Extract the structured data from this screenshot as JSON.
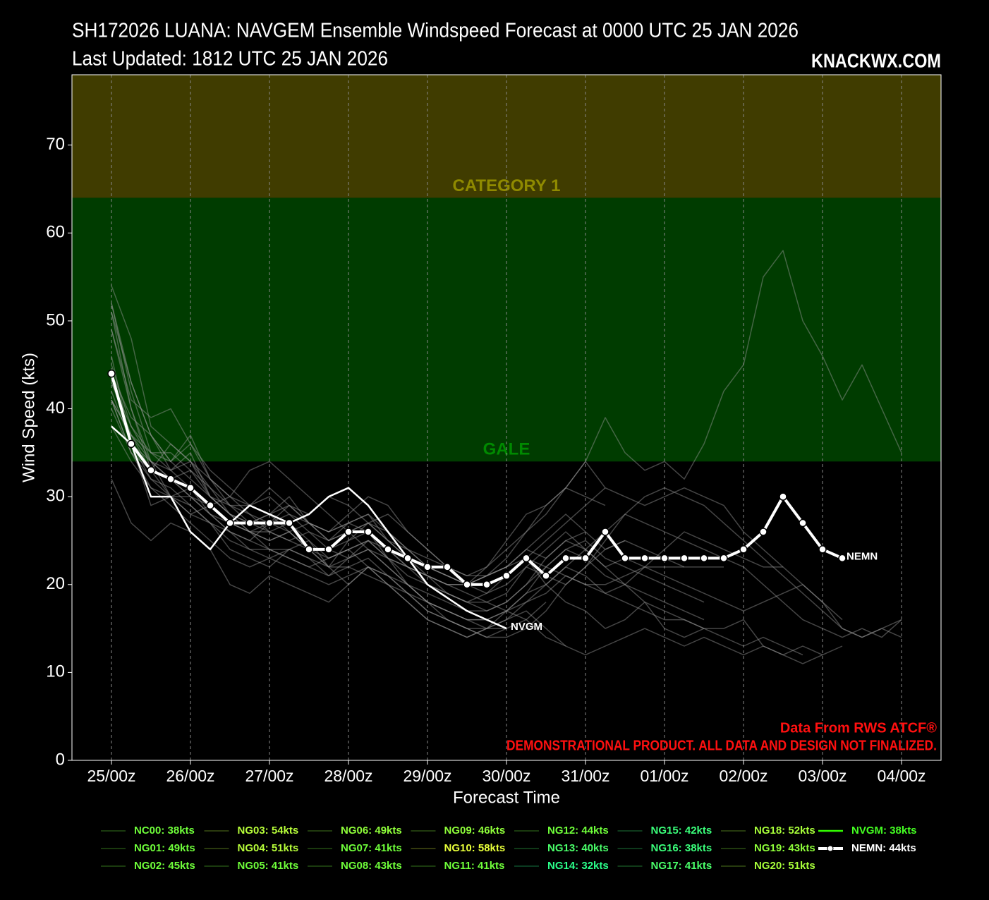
{
  "chart_data": {
    "type": "line",
    "title": "SH172026 LUANA: NAVGEM Ensemble Windspeed Forecast at 0000 UTC 25 JAN 2026",
    "subtitle": "Last Updated: 1812 UTC 25 JAN 2026",
    "brand": "KNACKWX.COM",
    "y_label": "Wind Speed (kts)",
    "x_label": "Forecast Time",
    "source": "Data From RWS ATCF®",
    "disclaimer": "DEMONSTRATIONAL PRODUCT. ALL DATA AND DESIGN NOT FINALIZED.",
    "ylim": [
      0,
      78
    ],
    "yticks": [
      0,
      10,
      20,
      30,
      40,
      50,
      60,
      70
    ],
    "x_grid": true,
    "bands": [
      {
        "label": "CATEGORY 1",
        "from": 64,
        "color": "#403c00",
        "label_color": "#8f8a00"
      },
      {
        "label": "GALE",
        "from": 34,
        "to": 64,
        "color": "#003c00",
        "label_color": "#008a00"
      }
    ],
    "categories": [
      "25/00z",
      null,
      null,
      null,
      "26/00z",
      null,
      null,
      null,
      "27/00z",
      null,
      null,
      null,
      "28/00z",
      null,
      null,
      null,
      "29/00z",
      null,
      null,
      null,
      "30/00z",
      null,
      null,
      null,
      "31/00z",
      null,
      null,
      null,
      "01/00z",
      null,
      null,
      null,
      "02/00z",
      null,
      null,
      null,
      "03/00z",
      null,
      null,
      null,
      "04/00z"
    ],
    "series": [
      {
        "name": "NC00: 38kts",
        "color": "#9a9a9a",
        "legend_color": "#6fff3a",
        "values": [
          38,
          36,
          32,
          30,
          28,
          27,
          26,
          25,
          24,
          24,
          23,
          22,
          22,
          21,
          20,
          19,
          18,
          17,
          16,
          15,
          15,
          null,
          null,
          null,
          null,
          null,
          null,
          null,
          null,
          null,
          null,
          null,
          null,
          null,
          null,
          null,
          null,
          null,
          null,
          null,
          null
        ]
      },
      {
        "name": "NG01: 49kts",
        "color": "#9a9a9a",
        "legend_color": "#6fff3a",
        "values": [
          49,
          40,
          33,
          30,
          29,
          27,
          25,
          24,
          24,
          23,
          22,
          21,
          22,
          23,
          21,
          19,
          17,
          16,
          15,
          14,
          14,
          15,
          17,
          20,
          22,
          24,
          25,
          null,
          null,
          null,
          null,
          null,
          null,
          null,
          null,
          null,
          null,
          null,
          null,
          null,
          null
        ]
      },
      {
        "name": "NG02: 45kts",
        "color": "#9a9a9a",
        "legend_color": "#6fff3a",
        "values": [
          45,
          38,
          35,
          33,
          34,
          30,
          28,
          26,
          24,
          23,
          22,
          23,
          24,
          25,
          23,
          20,
          18,
          17,
          16,
          16,
          17,
          18,
          20,
          22,
          21,
          19,
          20,
          22,
          24,
          26,
          25,
          24,
          23,
          22,
          22,
          null,
          null,
          null,
          null,
          null,
          null
        ]
      },
      {
        "name": "NG03: 54kts",
        "color": "#9a9a9a",
        "legend_color": "#b8ff3a",
        "values": [
          54,
          48,
          38,
          36,
          34,
          32,
          30,
          28,
          26,
          25,
          24,
          22,
          23,
          24,
          22,
          20,
          18,
          16,
          15,
          14,
          15,
          16,
          18,
          null,
          null,
          null,
          null,
          null,
          null,
          null,
          null,
          null,
          null,
          null,
          null,
          null,
          null,
          null,
          null,
          null,
          null
        ]
      },
      {
        "name": "NG04: 51kts",
        "color": "#9a9a9a",
        "legend_color": "#b8ff3a",
        "values": [
          51,
          43,
          37,
          34,
          37,
          32,
          29,
          27,
          28,
          30,
          27,
          25,
          26,
          27,
          25,
          23,
          21,
          19,
          18,
          17,
          18,
          20,
          23,
          25,
          24,
          22,
          20,
          18,
          17,
          16,
          15,
          14,
          13,
          14,
          13,
          12,
          null,
          null,
          null,
          null,
          null
        ]
      },
      {
        "name": "NG05: 41kts",
        "color": "#9a9a9a",
        "legend_color": "#6fff3a",
        "values": [
          41,
          35,
          31,
          30,
          31,
          28,
          26,
          24,
          23,
          24,
          25,
          22,
          20,
          22,
          21,
          19,
          17,
          16,
          15,
          15,
          16,
          18,
          19,
          21,
          20,
          19,
          18,
          17,
          16,
          16,
          15,
          15,
          16,
          13,
          12,
          13,
          12,
          null,
          null,
          null,
          null
        ]
      },
      {
        "name": "NG06: 49kts",
        "color": "#9a9a9a",
        "legend_color": "#8fff3a",
        "values": [
          49,
          41,
          39,
          40,
          36,
          32,
          30,
          29,
          28,
          26,
          27,
          25,
          27,
          26,
          24,
          22,
          21,
          20,
          19,
          18,
          17,
          19,
          20,
          22,
          24,
          26,
          28,
          27,
          26,
          25,
          24,
          23,
          22,
          20,
          18,
          16,
          15,
          14,
          15,
          14,
          16
        ]
      },
      {
        "name": "NG07: 41kts",
        "color": "#9a9a9a",
        "legend_color": "#6fff3a",
        "values": [
          41,
          37,
          35,
          35,
          33,
          31,
          29,
          28,
          27,
          29,
          28,
          30,
          29,
          27,
          25,
          24,
          23,
          22,
          21,
          21,
          22,
          24,
          23,
          25,
          26,
          null,
          null,
          null,
          null,
          null,
          null,
          null,
          null,
          null,
          null,
          null,
          null,
          null,
          null,
          null,
          null
        ]
      },
      {
        "name": "NG08: 43kts",
        "color": "#9a9a9a",
        "legend_color": "#6fff3a",
        "values": [
          43,
          38,
          34,
          30,
          30,
          28,
          26,
          25,
          27,
          26,
          24,
          22,
          25,
          27,
          28,
          26,
          24,
          22,
          20,
          19,
          21,
          23,
          20,
          18,
          17,
          15,
          16,
          18,
          15,
          14,
          15,
          null,
          null,
          null,
          null,
          null,
          null,
          null,
          null,
          null,
          null
        ]
      },
      {
        "name": "NG09: 46kts",
        "color": "#9a9a9a",
        "legend_color": "#8fff3a",
        "values": [
          46,
          36,
          29,
          30,
          28,
          29,
          30,
          33,
          34,
          32,
          30,
          28,
          26,
          24,
          22,
          20,
          18,
          17,
          16,
          16,
          17,
          19,
          22,
          24,
          25,
          23,
          22,
          21,
          20,
          19,
          18,
          null,
          null,
          null,
          null,
          null,
          null,
          null,
          null,
          null,
          null
        ]
      },
      {
        "name": "NG10: 58kts",
        "color": "#9a9a9a",
        "legend_color": "#e8ff3a",
        "values": [
          52,
          42,
          35,
          34,
          36,
          33,
          31,
          29,
          30,
          28,
          27,
          26,
          28,
          30,
          29,
          26,
          24,
          22,
          21,
          22,
          24,
          26,
          28,
          31,
          34,
          39,
          35,
          33,
          34,
          32,
          36,
          42,
          45,
          55,
          58,
          50,
          46,
          41,
          45,
          40,
          35
        ]
      },
      {
        "name": "NG11: 41kts",
        "color": "#9a9a9a",
        "legend_color": "#6fff3a",
        "values": [
          41,
          35,
          33,
          36,
          34,
          31,
          28,
          27,
          26,
          27,
          25,
          23,
          24,
          22,
          20,
          18,
          16,
          15,
          14,
          15,
          16,
          17,
          15,
          13,
          null,
          null,
          null,
          null,
          null,
          null,
          null,
          null,
          null,
          null,
          null,
          null,
          null,
          null,
          null,
          null,
          null
        ]
      },
      {
        "name": "NG12: 44kts",
        "color": "#9a9a9a",
        "legend_color": "#6fff3a",
        "values": [
          44,
          39,
          37,
          34,
          32,
          30,
          29,
          29,
          31,
          29,
          27,
          26,
          27,
          28,
          26,
          24,
          22,
          21,
          20,
          21,
          23,
          26,
          29,
          31,
          30,
          29,
          null,
          null,
          null,
          null,
          null,
          null,
          null,
          null,
          null,
          null,
          null,
          null,
          null,
          null,
          null
        ]
      },
      {
        "name": "NG13: 40kts",
        "color": "#9a9a9a",
        "legend_color": "#4aff6a",
        "values": [
          40,
          35,
          32,
          31,
          29,
          27,
          24,
          23,
          22,
          24,
          23,
          21,
          23,
          25,
          24,
          22,
          20,
          19,
          18,
          18,
          19,
          22,
          24,
          26,
          24,
          22,
          23,
          22,
          21,
          20,
          19,
          18,
          17,
          18,
          19,
          20,
          18,
          16,
          null,
          null,
          null
        ]
      },
      {
        "name": "NG14: 32kts",
        "color": "#9a9a9a",
        "legend_color": "#2aff8a",
        "values": [
          32,
          27,
          25,
          27,
          26,
          24,
          20,
          19,
          21,
          20,
          19,
          18,
          20,
          22,
          20,
          18,
          16,
          15,
          14,
          15,
          17,
          16,
          14,
          13,
          12,
          13,
          14,
          15,
          14,
          13,
          14,
          13,
          12,
          13,
          12,
          11,
          12,
          13,
          null,
          null,
          null
        ]
      },
      {
        "name": "NG15: 42kts",
        "color": "#9a9a9a",
        "legend_color": "#3aff7a",
        "values": [
          42,
          36,
          34,
          33,
          31,
          29,
          27,
          26,
          26,
          25,
          26,
          24,
          25,
          26,
          23,
          21,
          20,
          19,
          18,
          19,
          20,
          22,
          21,
          20,
          22,
          25,
          28,
          30,
          31,
          30,
          29,
          27,
          25,
          23,
          21,
          19,
          17,
          15,
          14,
          15,
          16
        ]
      },
      {
        "name": "NG16: 38kts",
        "color": "#9a9a9a",
        "legend_color": "#3aff7a",
        "values": [
          38,
          34,
          31,
          29,
          27,
          25,
          23,
          22,
          23,
          22,
          21,
          20,
          21,
          22,
          21,
          20,
          19,
          18,
          17,
          17,
          18,
          20,
          22,
          24,
          23,
          21,
          20,
          19,
          18,
          17,
          16,
          null,
          null,
          null,
          null,
          null,
          null,
          null,
          null,
          null,
          null
        ]
      },
      {
        "name": "NG17: 41kts",
        "color": "#9a9a9a",
        "legend_color": "#4aff6a",
        "values": [
          41,
          37,
          34,
          32,
          30,
          28,
          27,
          26,
          25,
          26,
          24,
          23,
          24,
          25,
          23,
          22,
          21,
          20,
          20,
          21,
          22,
          24,
          26,
          28,
          26,
          24,
          25,
          24,
          23,
          22,
          22,
          22,
          null,
          null,
          null,
          null,
          null,
          null,
          null,
          null,
          null
        ]
      },
      {
        "name": "NG18: 52kts",
        "color": "#9a9a9a",
        "legend_color": "#a8ff3a",
        "values": [
          52,
          43,
          37,
          33,
          35,
          30,
          28,
          26,
          25,
          26,
          24,
          24,
          23,
          24,
          23,
          22,
          21,
          20,
          20,
          22,
          25,
          28,
          29,
          31,
          34,
          31,
          30,
          29,
          30,
          31,
          30,
          29,
          26,
          24,
          22,
          20,
          18,
          15,
          14,
          15,
          14
        ]
      },
      {
        "name": "NG19: 43kts",
        "color": "#9a9a9a",
        "legend_color": "#8fff3a",
        "values": [
          43,
          37,
          33,
          32,
          30,
          29,
          27,
          26,
          27,
          28,
          26,
          25,
          26,
          27,
          26,
          24,
          22,
          21,
          20,
          20,
          21,
          23,
          25,
          27,
          29,
          31,
          null,
          null,
          null,
          null,
          null,
          null,
          null,
          null,
          null,
          null,
          null,
          null,
          null,
          null,
          null
        ]
      },
      {
        "name": "NG20: 51kts",
        "color": "#9a9a9a",
        "legend_color": "#a8ff3a",
        "values": [
          51,
          40,
          34,
          32,
          33,
          30,
          28,
          27,
          28,
          29,
          27,
          26,
          27,
          28,
          25,
          23,
          22,
          21,
          20,
          21,
          22,
          23,
          22,
          21,
          20,
          20,
          21,
          22,
          22,
          22,
          null,
          null,
          null,
          null,
          null,
          null,
          null,
          null,
          null,
          null,
          null
        ]
      },
      {
        "name": "NVGM: 38kts",
        "end_label": "NVGM",
        "color": "#ffffff",
        "legend_color": "#44ff22",
        "swatch_color": "#33ff00",
        "width": 2.5,
        "values": [
          38,
          36,
          30,
          30,
          26,
          24,
          27,
          29,
          28,
          27,
          28,
          30,
          31,
          29,
          26,
          23,
          20,
          18.5,
          17,
          16,
          15,
          null,
          null,
          null,
          null,
          null,
          null,
          null,
          null,
          null,
          null,
          null,
          null,
          null,
          null,
          null,
          null,
          null,
          null,
          null,
          null
        ]
      },
      {
        "name": "NEMN: 44kts",
        "end_label": "NEMN",
        "color": "#ffffff",
        "legend_color": "#ffffff",
        "width": 4,
        "markers": true,
        "values": [
          44,
          36,
          33,
          32,
          31,
          29,
          27,
          27,
          27,
          27,
          24,
          24,
          26,
          26,
          24,
          23,
          22,
          22,
          20,
          20,
          21,
          23,
          21,
          23,
          23,
          26,
          23,
          23,
          23,
          23,
          23,
          23,
          24,
          26,
          30,
          27,
          24,
          23,
          null,
          null,
          null
        ]
      }
    ]
  }
}
